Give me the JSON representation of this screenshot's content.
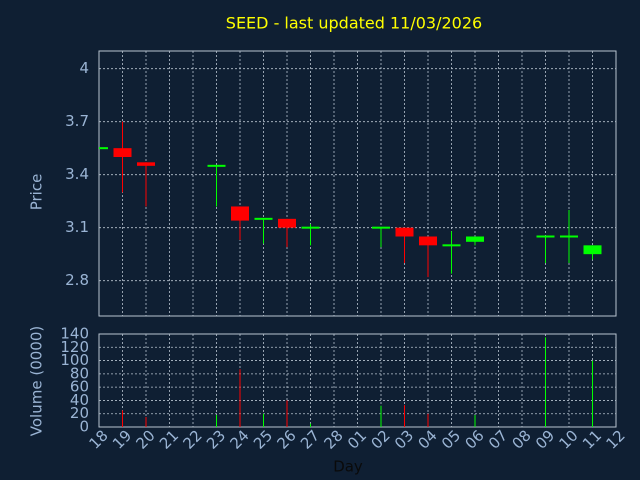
{
  "chart_data": [
    {
      "type": "candlestick",
      "title": "SEED - last updated 11/03/2026",
      "ylabel": "Price",
      "open": [
        3.55,
        3.55,
        3.47,
        null,
        null,
        3.45,
        3.22,
        3.15,
        3.15,
        3.1,
        null,
        null,
        3.1,
        3.1,
        3.05,
        3.0,
        3.02,
        null,
        null,
        3.05,
        3.05,
        2.95,
        null
      ],
      "high": [
        3.55,
        3.7,
        3.47,
        null,
        null,
        3.45,
        3.22,
        3.15,
        3.15,
        3.12,
        null,
        null,
        3.1,
        3.1,
        3.05,
        3.08,
        3.05,
        null,
        null,
        3.05,
        3.2,
        3.0,
        null
      ],
      "low": [
        3.55,
        3.3,
        3.22,
        null,
        null,
        3.22,
        3.03,
        3.01,
        2.99,
        3.0,
        null,
        null,
        2.99,
        2.9,
        2.82,
        2.84,
        3.0,
        null,
        null,
        2.9,
        2.9,
        2.92,
        null
      ],
      "close": [
        3.55,
        3.5,
        3.45,
        null,
        null,
        3.45,
        3.14,
        3.15,
        3.1,
        3.1,
        null,
        null,
        3.1,
        3.05,
        3.0,
        3.0,
        3.05,
        null,
        null,
        3.05,
        3.05,
        3.0,
        null
      ],
      "up_color": "#00ff00",
      "down_color": "#ff0000",
      "ylim": [
        2.6,
        4.1
      ],
      "yticks": [
        2.8,
        3.1,
        3.4,
        3.7,
        4
      ],
      "grid": true
    },
    {
      "type": "bar",
      "ylabel": "Volume (0000)",
      "xlabel": "Day",
      "categories": [
        "18",
        "19",
        "20",
        "21",
        "22",
        "23",
        "24",
        "25",
        "26",
        "27",
        "28",
        "01",
        "02",
        "03",
        "04",
        "05",
        "06",
        "07",
        "08",
        "09",
        "10",
        "11",
        "12"
      ],
      "values": [
        null,
        25,
        15,
        null,
        null,
        18,
        87,
        20,
        40,
        5,
        null,
        null,
        32,
        33,
        20,
        null,
        18,
        null,
        null,
        135,
        null,
        100,
        null
      ],
      "ylim": [
        0,
        140
      ],
      "yticks": [
        0,
        20,
        40,
        60,
        80,
        100,
        120,
        140
      ],
      "grid": true
    }
  ]
}
